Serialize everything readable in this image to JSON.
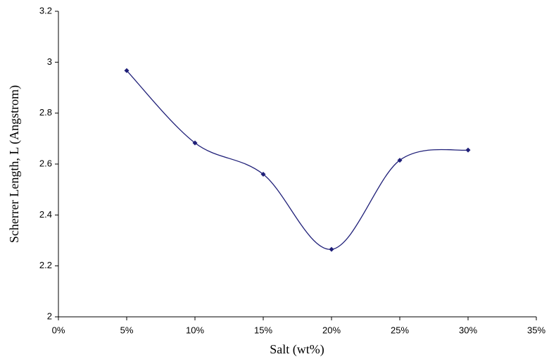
{
  "chart_data": {
    "type": "line",
    "xlabel": "Salt (wt%)",
    "ylabel": "Scherrer Length, L (Angstrom)",
    "x": [
      5,
      10,
      15,
      20,
      25,
      30
    ],
    "series": [
      {
        "color": "#1f1f78",
        "values": [
          2.967,
          2.683,
          2.56,
          2.265,
          2.615,
          2.655
        ]
      }
    ],
    "smooth": true,
    "xlim": [
      0,
      35
    ],
    "xticks": [
      {
        "value": 0,
        "label": "0%"
      },
      {
        "value": 5,
        "label": "5%"
      },
      {
        "value": 10,
        "label": "10%"
      },
      {
        "value": 15,
        "label": "15%"
      },
      {
        "value": 20,
        "label": "20%"
      },
      {
        "value": 25,
        "label": "25%"
      },
      {
        "value": 30,
        "label": "30%"
      },
      {
        "value": 35,
        "label": "35%"
      }
    ],
    "ylim": [
      2,
      3.2
    ],
    "yticks": [
      2,
      2.2,
      2.4,
      2.6,
      2.8,
      3,
      3.2
    ],
    "grid": false
  }
}
